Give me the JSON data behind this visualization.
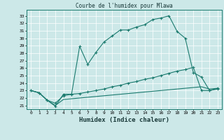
{
  "title": "Courbe de l'humidex pour Mlawa",
  "xlabel": "Humidex (Indice chaleur)",
  "x_values": [
    0,
    1,
    2,
    3,
    4,
    5,
    6,
    7,
    8,
    9,
    10,
    11,
    12,
    13,
    14,
    15,
    16,
    17,
    18,
    19,
    20,
    21,
    22,
    23
  ],
  "line1": [
    23.0,
    22.7,
    21.7,
    20.9,
    22.5,
    22.5,
    28.9,
    26.5,
    28.1,
    29.5,
    30.3,
    31.1,
    31.1,
    31.5,
    31.8,
    32.5,
    32.7,
    33.0,
    30.9,
    30.0,
    25.4,
    24.8,
    23.0,
    23.2
  ],
  "line2": [
    23.0,
    22.7,
    21.7,
    21.3,
    22.3,
    22.5,
    22.6,
    22.8,
    23.0,
    23.2,
    23.5,
    23.7,
    24.0,
    24.2,
    24.5,
    24.7,
    25.0,
    25.3,
    25.6,
    25.8,
    26.1,
    23.0,
    23.0,
    23.3
  ],
  "line3": [
    23.0,
    22.7,
    21.7,
    21.0,
    21.8,
    21.9,
    22.0,
    22.1,
    22.2,
    22.3,
    22.4,
    22.5,
    22.6,
    22.7,
    22.8,
    22.9,
    23.0,
    23.1,
    23.2,
    23.3,
    23.4,
    23.5,
    23.2,
    23.3
  ],
  "color": "#1a7a6e",
  "bg_color": "#cce8e8",
  "yticks": [
    21,
    22,
    23,
    24,
    25,
    26,
    27,
    28,
    29,
    30,
    31,
    32,
    33
  ]
}
